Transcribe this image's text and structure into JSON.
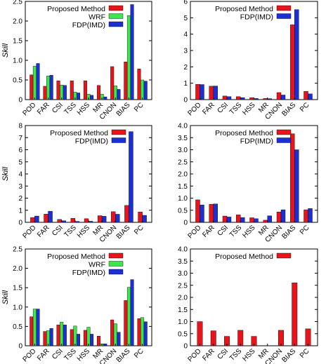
{
  "colors": {
    "proposed": "#e8141b",
    "wrf": "#3fe64a",
    "fdp": "#1b2fd6",
    "axis": "#000000"
  },
  "chart_data": [
    {
      "type": "bar",
      "ylabel": "Skill",
      "ylim": [
        0,
        2.5
      ],
      "yticks": [
        "0",
        "0.5",
        "1.0",
        "1.5",
        "2.0",
        "2.5"
      ],
      "categories": [
        "POD",
        "FAR",
        "CSI",
        "TSS",
        "HSS",
        "MR",
        "CNON",
        "BIAS",
        "PC"
      ],
      "legend_position": "top-left",
      "series": [
        {
          "name": "Proposed Method",
          "color": "proposed",
          "values": [
            0.63,
            0.34,
            0.48,
            0.48,
            0.48,
            0.36,
            0.84,
            0.96,
            0.78
          ]
        },
        {
          "name": "WRF",
          "color": "wrf",
          "values": [
            0.85,
            0.6,
            0.37,
            0.19,
            0.14,
            0.14,
            0.35,
            2.14,
            0.5
          ]
        },
        {
          "name": "FDP(IMD)",
          "color": "fdp",
          "values": [
            0.92,
            0.62,
            0.36,
            0.17,
            0.11,
            0.07,
            0.26,
            2.42,
            0.47
          ]
        }
      ]
    },
    {
      "type": "bar",
      "ylabel": "",
      "ylim": [
        0,
        6
      ],
      "yticks": [
        "0",
        "1",
        "2",
        "3",
        "4",
        "5",
        "6"
      ],
      "categories": [
        "POD",
        "FAR",
        "CSI",
        "TSS",
        "HSS",
        "MR",
        "CNON",
        "BIAS",
        "PC"
      ],
      "legend_position": "top-left",
      "series": [
        {
          "name": "Proposed Method",
          "color": "proposed",
          "values": [
            0.93,
            0.82,
            0.22,
            0.18,
            0.12,
            0.07,
            0.43,
            4.57,
            0.5
          ]
        },
        {
          "name": "FDP(IMD)",
          "color": "fdp",
          "values": [
            0.92,
            0.83,
            0.18,
            0.12,
            0.07,
            0.06,
            0.28,
            5.5,
            0.35
          ]
        }
      ]
    },
    {
      "type": "bar",
      "ylabel": "Skill",
      "ylim": [
        0,
        8
      ],
      "yticks": [
        "0",
        "1",
        "2",
        "3",
        "4",
        "5",
        "6",
        "7",
        "8"
      ],
      "categories": [
        "POD",
        "FAR",
        "CSI",
        "TSS",
        "HSS",
        "MR",
        "CNON",
        "BIAS",
        "PC"
      ],
      "legend_position": "top-left",
      "series": [
        {
          "name": "Proposed Method",
          "color": "proposed",
          "values": [
            0.4,
            0.68,
            0.24,
            0.34,
            0.3,
            0.55,
            0.88,
            1.4,
            0.86
          ]
        },
        {
          "name": "FDP(IMD)",
          "color": "fdp",
          "values": [
            0.52,
            0.92,
            0.13,
            0.08,
            0.09,
            0.5,
            0.67,
            7.5,
            0.58
          ]
        }
      ]
    },
    {
      "type": "bar",
      "ylabel": "",
      "ylim": [
        0,
        4
      ],
      "yticks": [
        "0",
        "0.5",
        "1.0",
        "1.5",
        "2.0",
        "2.5",
        "3.0",
        "3.5",
        "4.0"
      ],
      "categories": [
        "POD",
        "FAR",
        "CSI",
        "TSS",
        "HSS",
        "MR",
        "CNON",
        "BIAS",
        "PC"
      ],
      "legend_position": "top-left",
      "series": [
        {
          "name": "Proposed Method",
          "color": "proposed",
          "values": [
            0.93,
            0.75,
            0.26,
            0.31,
            0.19,
            0.09,
            0.43,
            3.66,
            0.52
          ]
        },
        {
          "name": "FDP(IMD)",
          "color": "fdp",
          "values": [
            0.72,
            0.76,
            0.22,
            0.2,
            0.15,
            0.27,
            0.52,
            3.0,
            0.57
          ]
        }
      ]
    },
    {
      "type": "bar",
      "ylabel": "Skill",
      "ylim": [
        0,
        2.5
      ],
      "yticks": [
        "0",
        "0.5",
        "1.0",
        "1.5",
        "2.0",
        "2.5"
      ],
      "categories": [
        "POD",
        "FAR",
        "CSI",
        "TSS",
        "HSS",
        "MR",
        "CNON",
        "BIAS",
        "PC"
      ],
      "legend_position": "top-left",
      "series": [
        {
          "name": "Proposed Method",
          "color": "proposed",
          "values": [
            0.75,
            0.37,
            0.54,
            0.42,
            0.4,
            0.25,
            0.67,
            1.17,
            0.7
          ]
        },
        {
          "name": "WRF",
          "color": "wrf",
          "values": [
            0.95,
            0.39,
            0.61,
            0.51,
            0.48,
            0.05,
            0.57,
            1.51,
            0.73
          ]
        },
        {
          "name": "FDP(IMD)",
          "color": "fdp",
          "values": [
            0.95,
            0.45,
            0.54,
            0.3,
            0.3,
            0.05,
            0.35,
            1.71,
            0.62
          ]
        }
      ]
    },
    {
      "type": "bar",
      "ylabel": "",
      "ylim": [
        0,
        4
      ],
      "yticks": [
        "0",
        "0.5",
        "1.0",
        "1.5",
        "2.0",
        "2.5",
        "3.0",
        "3.5",
        "4.0"
      ],
      "categories": [
        "POD",
        "FAR",
        "CSI",
        "TSS",
        "HSS",
        "MR",
        "CNON",
        "BIAS",
        "PC"
      ],
      "legend_position": "top-left",
      "series": [
        {
          "name": "Proposed Method",
          "color": "proposed",
          "values": [
            1.0,
            0.62,
            0.39,
            0.64,
            0.39,
            0.0,
            0.64,
            2.6,
            0.7
          ]
        }
      ]
    }
  ]
}
